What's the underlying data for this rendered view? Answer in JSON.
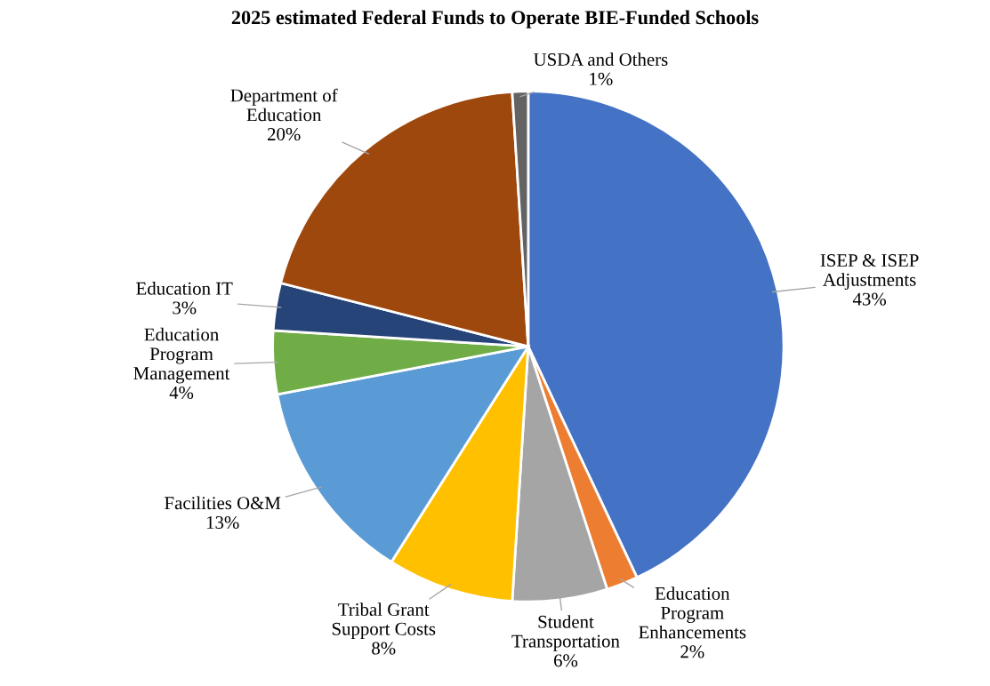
{
  "chart_data": {
    "type": "pie",
    "title": "2025 estimated Federal Funds to Operate BIE-Funded Schools",
    "categories": [
      "ISEP & ISEP\nAdjustments",
      "Education\nProgram\nEnhancements",
      "Student\nTransportation",
      "Tribal Grant\nSupport Costs",
      "Facilities O&M",
      "Education\nProgram\nManagement",
      "Education IT",
      "Department of\nEducation",
      "USDA and Others"
    ],
    "values": [
      43,
      2,
      6,
      8,
      13,
      4,
      3,
      20,
      1
    ],
    "value_labels": [
      "43%",
      "2%",
      "6%",
      "8%",
      "13%",
      "4%",
      "3%",
      "20%",
      "1%"
    ],
    "colors": [
      "#4472c4",
      "#ed7d31",
      "#a5a5a5",
      "#ffc000",
      "#5b9bd5",
      "#70ad47",
      "#264478",
      "#9e480e",
      "#636363"
    ],
    "legend": false
  }
}
